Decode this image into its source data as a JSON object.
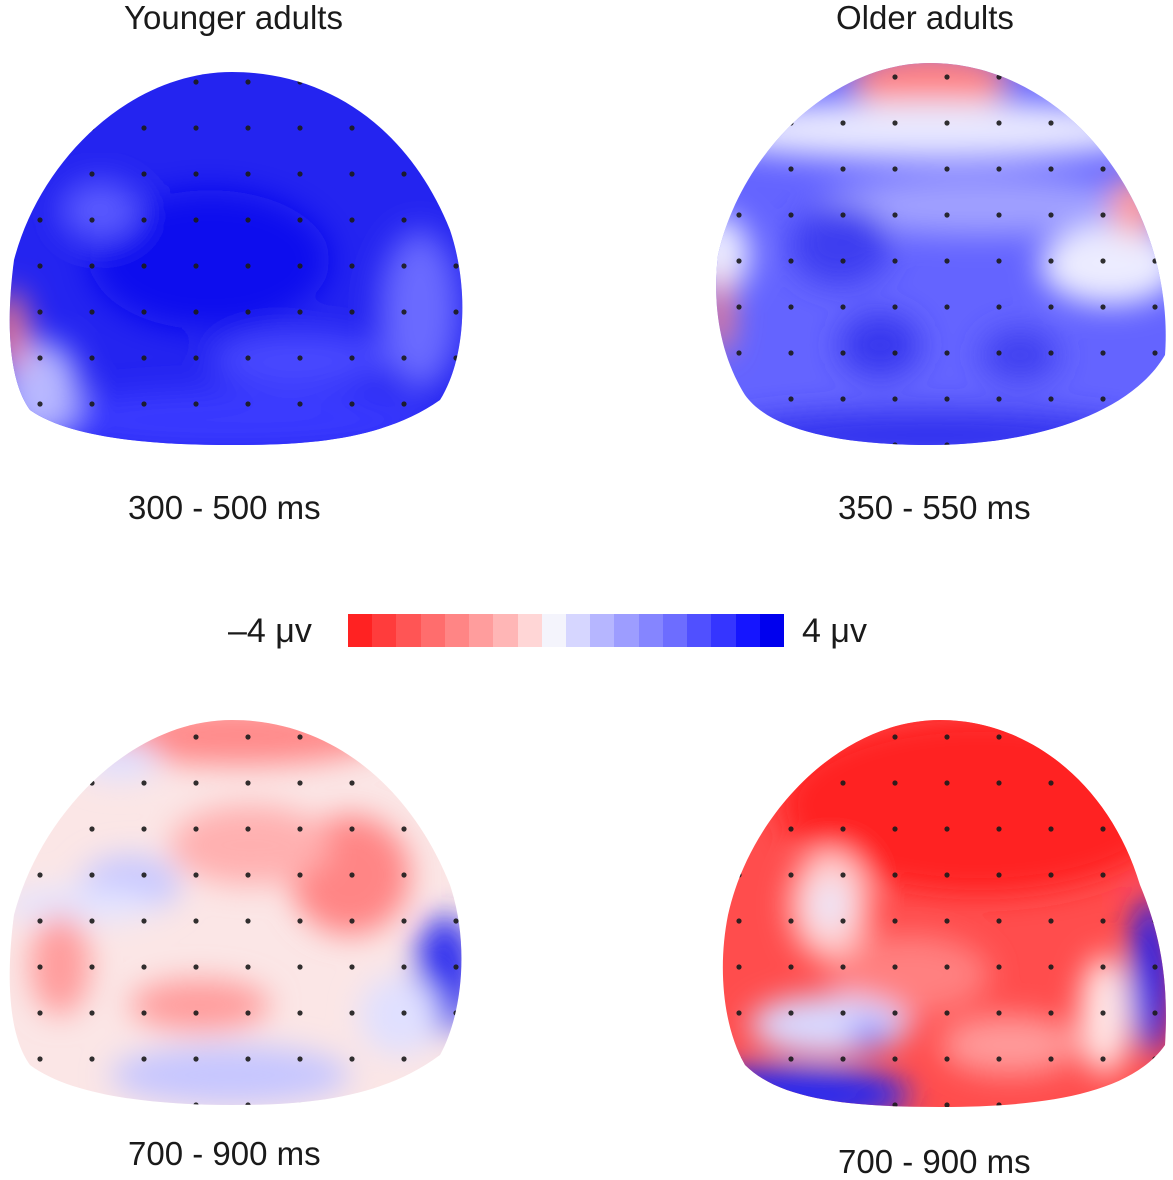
{
  "figure": {
    "columns": [
      {
        "title": "Younger adults"
      },
      {
        "title": "Older adults"
      }
    ],
    "maps": [
      {
        "id": "younger-early",
        "group": "Younger adults",
        "time_window": "300 - 500 ms",
        "dominant": "positive"
      },
      {
        "id": "older-early",
        "group": "Older adults",
        "time_window": "350 - 550 ms",
        "dominant": "positive"
      },
      {
        "id": "younger-late",
        "group": "Younger adults",
        "time_window": "700 - 900 ms",
        "dominant": "mixed"
      },
      {
        "id": "older-late",
        "group": "Older adults",
        "time_window": "700 - 900 ms",
        "dominant": "negative"
      }
    ],
    "colorbar": {
      "min_label": "–4 μv",
      "max_label": "4 μv",
      "min_value": -4,
      "max_value": 4,
      "unit": "μv",
      "colors": [
        "#ff2222",
        "#ff3c3c",
        "#ff5555",
        "#ff6d6d",
        "#ff8585",
        "#ff9d9d",
        "#ffb6b6",
        "#ffd6d6",
        "#f4f4fc",
        "#d6d6ff",
        "#b6b6ff",
        "#9d9dff",
        "#8585ff",
        "#6d6dff",
        "#5050ff",
        "#3535ff",
        "#1515ff",
        "#0000ee"
      ]
    }
  }
}
